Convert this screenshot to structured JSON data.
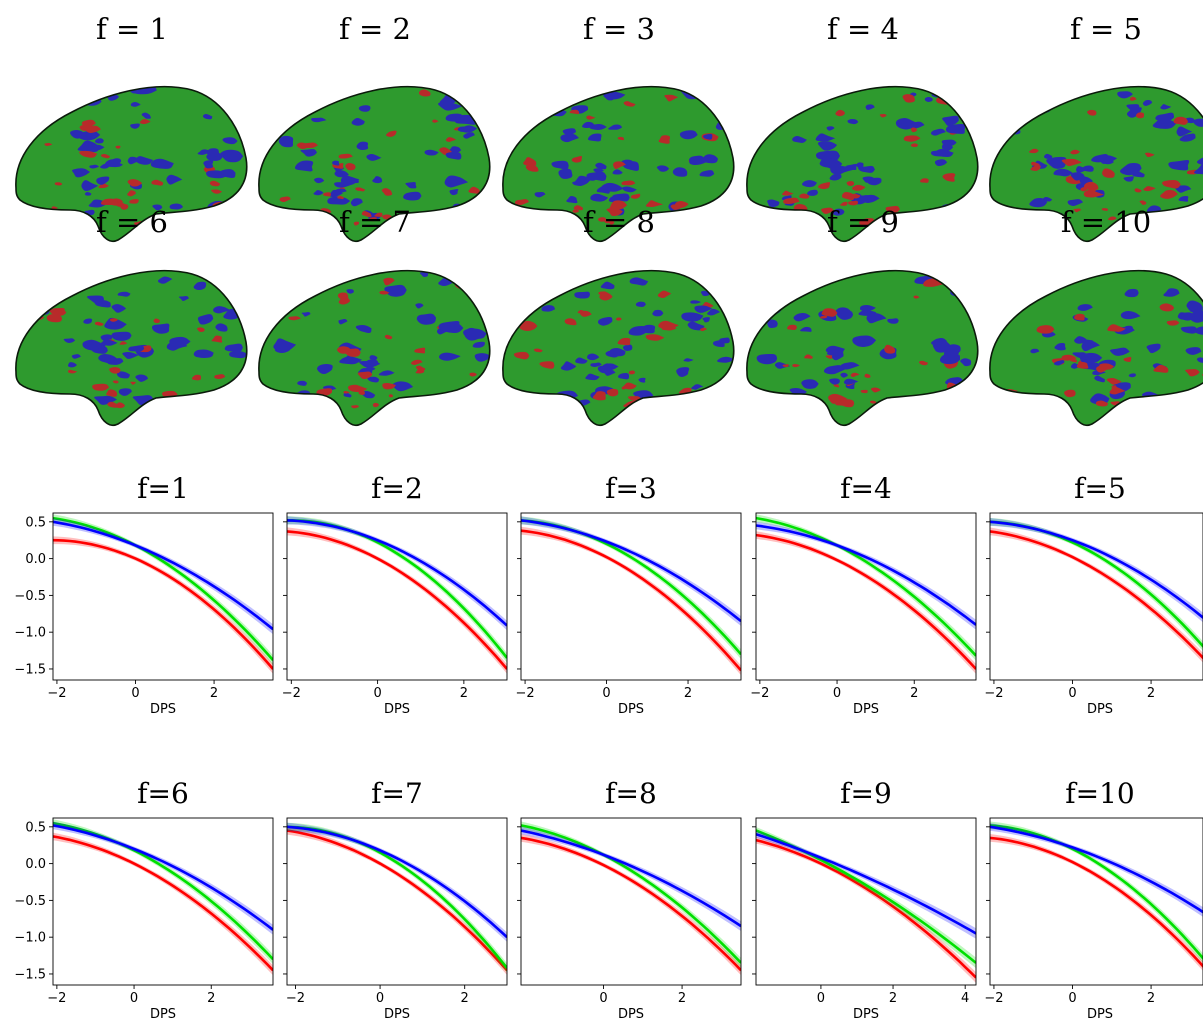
{
  "colors": {
    "red": "#ff0000",
    "green": "#00e000",
    "blue": "#0000ff",
    "brain_green": "#2e9a2e",
    "brain_red": "#b82a2a",
    "brain_blue": "#2a2ab4"
  },
  "brains": {
    "titles": [
      "f = 1",
      "f = 2",
      "f = 3",
      "f = 4",
      "f = 5",
      "f = 6",
      "f = 7",
      "f = 8",
      "f = 9",
      "f = 10"
    ]
  },
  "chart_data": [
    {
      "type": "line",
      "title": "f=1",
      "xlabel": "DPS",
      "xlim": [
        -2.1,
        3.5
      ],
      "ylim": [
        -1.65,
        0.62
      ],
      "xticks": [
        -2,
        0,
        2
      ],
      "xtick_labels": [
        "−2",
        "0",
        "2"
      ],
      "yticks": [
        0.5,
        0.0,
        -0.5,
        -1.0,
        -1.5
      ],
      "ytick_labels": [
        "0.5",
        "0.0",
        "−0.5",
        "−1.0",
        "−1.5"
      ],
      "show_yticklabels": true,
      "series": [
        {
          "color": "red",
          "x": [
            -2.1,
            0,
            3.5
          ],
          "y": [
            0.25,
            0.0,
            -1.5
          ]
        },
        {
          "color": "green",
          "x": [
            -2.1,
            0,
            3.5
          ],
          "y": [
            0.55,
            0.18,
            -1.38
          ]
        },
        {
          "color": "blue",
          "x": [
            -2.1,
            0,
            3.5
          ],
          "y": [
            0.5,
            0.18,
            -0.96
          ]
        }
      ]
    },
    {
      "type": "line",
      "title": "f=2",
      "xlabel": "DPS",
      "xlim": [
        -2.1,
        3.0
      ],
      "ylim": [
        -1.65,
        0.62
      ],
      "xticks": [
        -2,
        0,
        2
      ],
      "xtick_labels": [
        "−2",
        "0",
        "2"
      ],
      "yticks": [
        0.5,
        0.0,
        -0.5,
        -1.0,
        -1.5
      ],
      "ytick_labels": [
        "0.5",
        "0.0",
        "−0.5",
        "−1.0",
        "−1.5"
      ],
      "show_yticklabels": false,
      "series": [
        {
          "color": "red",
          "x": [
            -2.1,
            0,
            3.0
          ],
          "y": [
            0.37,
            0.0,
            -1.5
          ]
        },
        {
          "color": "green",
          "x": [
            -2.1,
            0,
            3.0
          ],
          "y": [
            0.52,
            0.22,
            -1.35
          ]
        },
        {
          "color": "blue",
          "x": [
            -2.1,
            0,
            3.0
          ],
          "y": [
            0.52,
            0.25,
            -0.91
          ]
        }
      ]
    },
    {
      "type": "line",
      "title": "f=3",
      "xlabel": "DPS",
      "xlim": [
        -2.1,
        3.3
      ],
      "ylim": [
        -1.65,
        0.62
      ],
      "xticks": [
        -2,
        0,
        2
      ],
      "xtick_labels": [
        "−2",
        "0",
        "2"
      ],
      "yticks": [
        0.5,
        0.0,
        -0.5,
        -1.0,
        -1.5
      ],
      "ytick_labels": [
        "0.5",
        "0.0",
        "−0.5",
        "−1.0",
        "−1.5"
      ],
      "show_yticklabels": false,
      "series": [
        {
          "color": "red",
          "x": [
            -2.1,
            0,
            3.3
          ],
          "y": [
            0.38,
            0.02,
            -1.52
          ]
        },
        {
          "color": "green",
          "x": [
            -2.1,
            0,
            3.3
          ],
          "y": [
            0.52,
            0.2,
            -1.3
          ]
        },
        {
          "color": "blue",
          "x": [
            -2.1,
            0,
            3.3
          ],
          "y": [
            0.52,
            0.23,
            -0.85
          ]
        }
      ]
    },
    {
      "type": "line",
      "title": "f=4",
      "xlabel": "DPS",
      "xlim": [
        -2.1,
        3.6
      ],
      "ylim": [
        -1.65,
        0.62
      ],
      "xticks": [
        -2,
        0,
        2
      ],
      "xtick_labels": [
        "−2",
        "0",
        "2"
      ],
      "yticks": [
        0.5,
        0.0,
        -0.5,
        -1.0,
        -1.5
      ],
      "ytick_labels": [
        "0.5",
        "0.0",
        "−0.5",
        "−1.0",
        "−1.5"
      ],
      "show_yticklabels": false,
      "series": [
        {
          "color": "red",
          "x": [
            -2.1,
            0,
            3.6
          ],
          "y": [
            0.32,
            -0.02,
            -1.5
          ]
        },
        {
          "color": "green",
          "x": [
            -2.1,
            0,
            3.6
          ],
          "y": [
            0.55,
            0.18,
            -1.32
          ]
        },
        {
          "color": "blue",
          "x": [
            -2.1,
            0,
            3.6
          ],
          "y": [
            0.45,
            0.18,
            -0.9
          ]
        }
      ]
    },
    {
      "type": "line",
      "title": "f=5",
      "xlabel": "DPS",
      "xlim": [
        -2.1,
        3.5
      ],
      "ylim": [
        -1.65,
        0.62
      ],
      "xticks": [
        -2,
        0,
        2
      ],
      "xtick_labels": [
        "−2",
        "0",
        "2"
      ],
      "yticks": [
        0.5,
        0.0,
        -0.5,
        -1.0,
        -1.5
      ],
      "ytick_labels": [
        "0.5",
        "0.0",
        "−0.5",
        "−1.0",
        "−1.5"
      ],
      "show_yticklabels": false,
      "series": [
        {
          "color": "red",
          "x": [
            -2.1,
            0,
            3.5
          ],
          "y": [
            0.37,
            0.02,
            -1.45
          ]
        },
        {
          "color": "green",
          "x": [
            -2.1,
            0,
            3.5
          ],
          "y": [
            0.5,
            0.22,
            -1.3
          ]
        },
        {
          "color": "blue",
          "x": [
            -2.1,
            0,
            3.5
          ],
          "y": [
            0.5,
            0.25,
            -0.88
          ]
        }
      ]
    },
    {
      "type": "line",
      "title": "f=6",
      "xlabel": "DPS",
      "xlim": [
        -2.1,
        3.6
      ],
      "ylim": [
        -1.65,
        0.62
      ],
      "xticks": [
        -2,
        0,
        2
      ],
      "xtick_labels": [
        "−2",
        "0",
        "2"
      ],
      "yticks": [
        0.5,
        0.0,
        -0.5,
        -1.0,
        -1.5
      ],
      "ytick_labels": [
        "0.5",
        "0.0",
        "−0.5",
        "−1.0",
        "−1.5"
      ],
      "show_yticklabels": true,
      "series": [
        {
          "color": "red",
          "x": [
            -2.1,
            0,
            3.6
          ],
          "y": [
            0.37,
            0.0,
            -1.45
          ]
        },
        {
          "color": "green",
          "x": [
            -2.1,
            0,
            3.6
          ],
          "y": [
            0.55,
            0.18,
            -1.3
          ]
        },
        {
          "color": "blue",
          "x": [
            -2.1,
            0,
            3.6
          ],
          "y": [
            0.52,
            0.2,
            -0.9
          ]
        }
      ]
    },
    {
      "type": "line",
      "title": "f=7",
      "xlabel": "DPS",
      "xlim": [
        -2.2,
        3.0
      ],
      "ylim": [
        -1.65,
        0.62
      ],
      "xticks": [
        -2,
        0,
        2
      ],
      "xtick_labels": [
        "−2",
        "0",
        "2"
      ],
      "yticks": [
        0.5,
        0.0,
        -0.5,
        -1.0,
        -1.5
      ],
      "ytick_labels": [
        "0.5",
        "0.0",
        "−0.5",
        "−1.0",
        "−1.5"
      ],
      "show_yticklabels": false,
      "series": [
        {
          "color": "red",
          "x": [
            -2.2,
            0,
            3.0
          ],
          "y": [
            0.45,
            0.0,
            -1.45
          ]
        },
        {
          "color": "green",
          "x": [
            -2.2,
            0,
            3.0
          ],
          "y": [
            0.5,
            0.15,
            -1.42
          ]
        },
        {
          "color": "blue",
          "x": [
            -2.2,
            0,
            3.0
          ],
          "y": [
            0.5,
            0.18,
            -1.0
          ]
        }
      ]
    },
    {
      "type": "line",
      "title": "f=8",
      "xlabel": "DPS",
      "xlim": [
        -2.1,
        3.5
      ],
      "ylim": [
        -1.65,
        0.62
      ],
      "xticks": [
        0,
        2
      ],
      "xtick_labels": [
        "0",
        "2"
      ],
      "yticks": [
        0.5,
        0.0,
        -0.5,
        -1.0,
        -1.5
      ],
      "ytick_labels": [
        "0.5",
        "0.0",
        "−0.5",
        "−1.0",
        "−1.5"
      ],
      "show_yticklabels": false,
      "series": [
        {
          "color": "red",
          "x": [
            -2.1,
            0,
            3.5
          ],
          "y": [
            0.35,
            -0.02,
            -1.45
          ]
        },
        {
          "color": "green",
          "x": [
            -2.1,
            0,
            3.5
          ],
          "y": [
            0.52,
            0.12,
            -1.35
          ]
        },
        {
          "color": "blue",
          "x": [
            -2.1,
            0,
            3.5
          ],
          "y": [
            0.45,
            0.12,
            -0.85
          ]
        }
      ]
    },
    {
      "type": "line",
      "title": "f=9",
      "xlabel": "DPS",
      "xlim": [
        -1.8,
        4.3
      ],
      "ylim": [
        -1.65,
        0.62
      ],
      "xticks": [
        0,
        2,
        4
      ],
      "xtick_labels": [
        "0",
        "2",
        "4"
      ],
      "yticks": [
        0.5,
        0.0,
        -0.5,
        -1.0,
        -1.5
      ],
      "ytick_labels": [
        "0.5",
        "0.0",
        "−0.5",
        "−1.0",
        "−1.5"
      ],
      "show_yticklabels": false,
      "series": [
        {
          "color": "red",
          "x": [
            -1.8,
            0,
            4.3
          ],
          "y": [
            0.32,
            0.0,
            -1.55
          ]
        },
        {
          "color": "green",
          "x": [
            -1.8,
            0,
            4.3
          ],
          "y": [
            0.45,
            0.05,
            -1.35
          ]
        },
        {
          "color": "blue",
          "x": [
            -1.8,
            0,
            4.3
          ],
          "y": [
            0.4,
            0.08,
            -0.95
          ]
        }
      ]
    },
    {
      "type": "line",
      "title": "f=10",
      "xlabel": "DPS",
      "xlim": [
        -2.1,
        3.5
      ],
      "ylim": [
        -1.65,
        0.62
      ],
      "xticks": [
        -2,
        0,
        2
      ],
      "xtick_labels": [
        "−2",
        "0",
        "2"
      ],
      "yticks": [
        0.5,
        0.0,
        -0.5,
        -1.0,
        -1.5
      ],
      "ytick_labels": [
        "0.5",
        "0.0",
        "−0.5",
        "−1.0",
        "−1.5"
      ],
      "show_yticklabels": false,
      "series": [
        {
          "color": "red",
          "x": [
            -2.1,
            0,
            3.5
          ],
          "y": [
            0.35,
            0.02,
            -1.5
          ]
        },
        {
          "color": "green",
          "x": [
            -2.1,
            0,
            3.5
          ],
          "y": [
            0.52,
            0.2,
            -1.4
          ]
        },
        {
          "color": "blue",
          "x": [
            -2.1,
            0,
            3.5
          ],
          "y": [
            0.5,
            0.22,
            -0.72
          ]
        }
      ]
    }
  ]
}
